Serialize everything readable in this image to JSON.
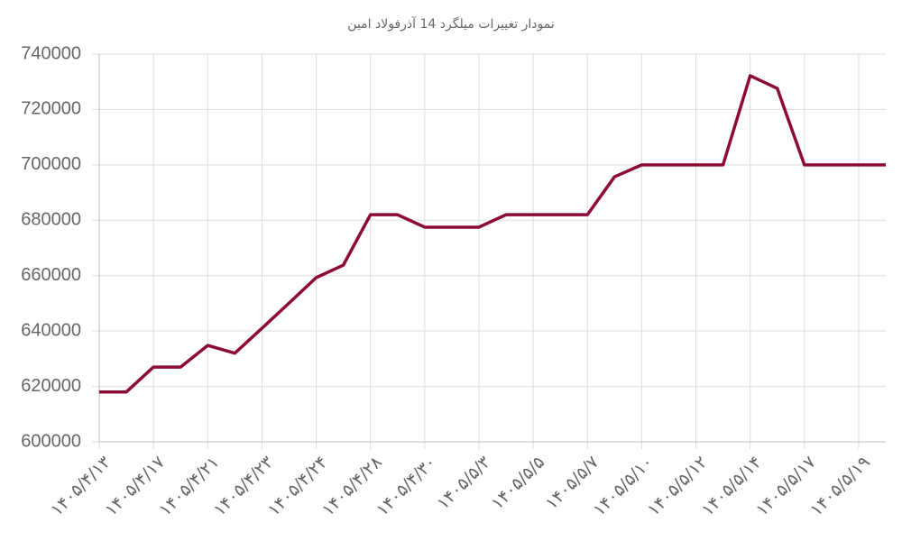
{
  "chart_data": {
    "type": "line",
    "title": "نمودار تغییرات میلگرد 14 آذرفولاد امین",
    "categories": [
      "۱۴۰۵/۴/۱۳",
      null,
      "۱۴۰۵/۴/۱۷",
      null,
      "۱۴۰۵/۴/۲۱",
      null,
      "۱۴۰۵/۴/۲۳",
      null,
      "۱۴۰۵/۴/۲۴",
      null,
      "۱۴۰۵/۴/۲۸",
      null,
      "۱۴۰۵/۴/۳۰",
      null,
      "۱۴۰۵/۵/۳",
      null,
      "۱۴۰۵/۵/۵",
      null,
      "۱۴۰۵/۵/۷",
      null,
      "۱۴۰۵/۵/۱۰",
      null,
      "۱۴۰۵/۵/۱۲",
      null,
      "۱۴۰۵/۵/۱۴",
      null,
      "۱۴۰۵/۵/۱۷",
      null,
      "۱۴۰۵/۵/۱۹",
      null
    ],
    "series": [
      {
        "color": "#8b0a3a",
        "values": [
          618000,
          618000,
          627000,
          627000,
          634800,
          632000,
          641000,
          650100,
          659300,
          663800,
          682000,
          682000,
          677500,
          677500,
          677500,
          682000,
          682000,
          682000,
          682000,
          695700,
          700000,
          700000,
          700000,
          700000,
          732200,
          727600,
          700000,
          700000,
          700000,
          700000
        ]
      }
    ],
    "ylim": [
      600000,
      740000
    ],
    "yticks": [
      600000,
      620000,
      640000,
      660000,
      680000,
      700000,
      720000,
      740000
    ],
    "grid": true
  }
}
